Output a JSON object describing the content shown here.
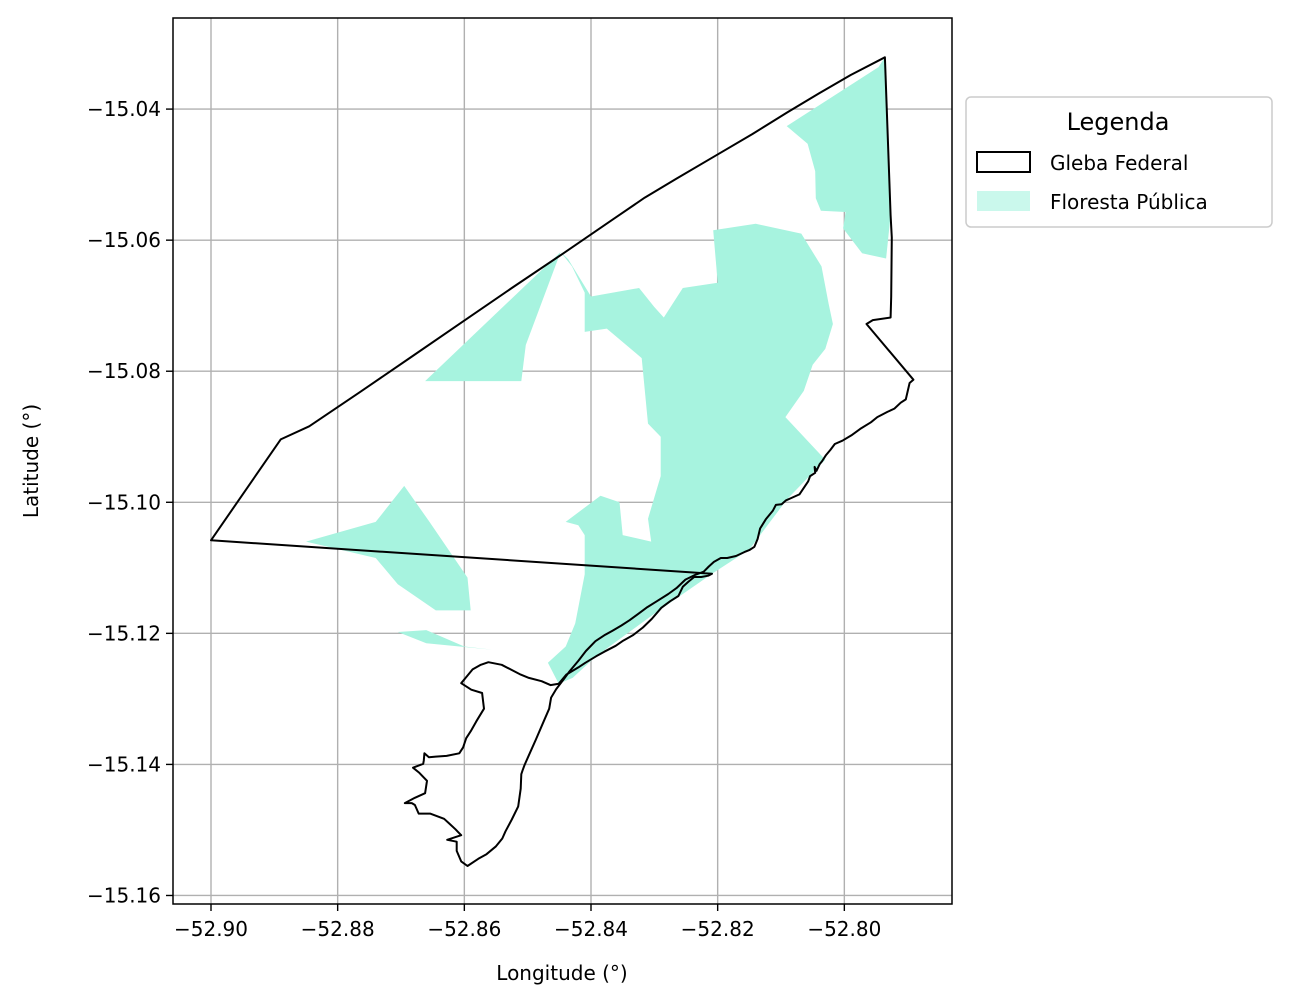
{
  "chart_data": {
    "type": "map",
    "xlabel": "Longitude (°)",
    "ylabel": "Latitude (°)",
    "xlim": [
      -52.906,
      -52.783
    ],
    "ylim": [
      -15.1613,
      -15.0261
    ],
    "x_ticks": [
      -52.9,
      -52.88,
      -52.86,
      -52.84,
      -52.82,
      -52.8
    ],
    "x_tick_labels": [
      "−52.90",
      "−52.88",
      "−52.86",
      "−52.84",
      "−52.82",
      "−52.80"
    ],
    "y_ticks": [
      -15.04,
      -15.06,
      -15.08,
      -15.1,
      -15.12,
      -15.14,
      -15.16
    ],
    "y_tick_labels": [
      "−15.04",
      "−15.06",
      "−15.08",
      "−15.10",
      "−15.12",
      "−15.14",
      "−15.16"
    ],
    "grid": true,
    "legend": {
      "title": "Legenda",
      "placement": "outside-upper-right",
      "entries": [
        {
          "label": "Gleba Federal",
          "style": "outline",
          "color": "#000000"
        },
        {
          "label": "Floresta Pública",
          "style": "fill",
          "color": "#a7f3df"
        }
      ]
    },
    "layers": [
      {
        "name": "Gleba Federal",
        "style": "outline",
        "color": "#000000",
        "polygons": [
          [
            [
              -52.9,
              -15.1058
            ],
            [
              -52.889,
              -15.0904
            ],
            [
              -52.8845,
              -15.0884
            ],
            [
              -52.8765,
              -15.0832
            ],
            [
              -52.8685,
              -15.0779
            ],
            [
              -52.8605,
              -15.0726
            ],
            [
              -52.8525,
              -15.0673
            ],
            [
              -52.8445,
              -15.0621
            ],
            [
              -52.8365,
              -15.0568
            ],
            [
              -52.8315,
              -15.0535
            ],
            [
              -52.8265,
              -15.0506
            ],
            [
              -52.8205,
              -15.0472
            ],
            [
              -52.8145,
              -15.0438
            ],
            [
              -52.809,
              -15.0405
            ],
            [
              -52.804,
              -15.0376
            ],
            [
              -52.799,
              -15.0348
            ],
            [
              -52.7936,
              -15.0321
            ],
            [
              -52.7927,
              -15.0562
            ],
            [
              -52.7925,
              -15.0596
            ],
            [
              -52.7926,
              -15.0686
            ],
            [
              -52.7927,
              -15.0718
            ],
            [
              -52.7955,
              -15.0722
            ],
            [
              -52.7965,
              -15.0728
            ],
            [
              -52.7891,
              -15.0813
            ],
            [
              -52.7897,
              -15.0818
            ],
            [
              -52.7903,
              -15.0843
            ],
            [
              -52.7911,
              -15.0848
            ],
            [
              -52.7921,
              -15.0857
            ],
            [
              -52.7932,
              -15.0862
            ],
            [
              -52.7948,
              -15.087
            ],
            [
              -52.7958,
              -15.0878
            ],
            [
              -52.7975,
              -15.0888
            ],
            [
              -52.7989,
              -15.0898
            ],
            [
              -52.8003,
              -15.0906
            ],
            [
              -52.8015,
              -15.0911
            ],
            [
              -52.8022,
              -15.092
            ],
            [
              -52.8029,
              -15.0928
            ],
            [
              -52.8035,
              -15.0937
            ],
            [
              -52.8039,
              -15.0942
            ],
            [
              -52.8044,
              -15.0952
            ],
            [
              -52.8047,
              -15.0946
            ],
            [
              -52.8046,
              -15.0955
            ],
            [
              -52.8054,
              -15.096
            ],
            [
              -52.8057,
              -15.0968
            ],
            [
              -52.8066,
              -15.0981
            ],
            [
              -52.8071,
              -15.0988
            ],
            [
              -52.8085,
              -15.0994
            ],
            [
              -52.8092,
              -15.0997
            ],
            [
              -52.8099,
              -15.1003
            ],
            [
              -52.8108,
              -15.1004
            ],
            [
              -52.8113,
              -15.1013
            ],
            [
              -52.8124,
              -15.1026
            ],
            [
              -52.8133,
              -15.104
            ],
            [
              -52.8137,
              -15.1056
            ],
            [
              -52.8142,
              -15.1068
            ],
            [
              -52.815,
              -15.1073
            ],
            [
              -52.8158,
              -15.1076
            ],
            [
              -52.8171,
              -15.1082
            ],
            [
              -52.8185,
              -15.1085
            ],
            [
              -52.8195,
              -15.1085
            ],
            [
              -52.8206,
              -15.1091
            ],
            [
              -52.8214,
              -15.1098
            ],
            [
              -52.8222,
              -15.1106
            ],
            [
              -52.8236,
              -15.1111
            ],
            [
              -52.8251,
              -15.1118
            ],
            [
              -52.8265,
              -15.1131
            ],
            [
              -52.8278,
              -15.114
            ],
            [
              -52.8296,
              -15.1151
            ],
            [
              -52.8311,
              -15.116
            ],
            [
              -52.8325,
              -15.117
            ],
            [
              -52.8339,
              -15.118
            ],
            [
              -52.8352,
              -15.1188
            ],
            [
              -52.8366,
              -15.1196
            ],
            [
              -52.8379,
              -15.1203
            ],
            [
              -52.8393,
              -15.1212
            ],
            [
              -52.8408,
              -15.1227
            ],
            [
              -52.842,
              -15.1242
            ],
            [
              -52.8434,
              -15.1258
            ],
            [
              -52.8443,
              -15.127
            ],
            [
              -52.8455,
              -15.1285
            ],
            [
              -52.8463,
              -15.1298
            ],
            [
              -52.8466,
              -15.1315
            ],
            [
              -52.8475,
              -15.1335
            ],
            [
              -52.8487,
              -15.1362
            ],
            [
              -52.8498,
              -15.1386
            ],
            [
              -52.8505,
              -15.1401
            ],
            [
              -52.8508,
              -15.1409
            ],
            [
              -52.851,
              -15.1415
            ],
            [
              -52.8511,
              -15.1437
            ],
            [
              -52.8515,
              -15.1464
            ],
            [
              -52.8525,
              -15.1484
            ],
            [
              -52.8535,
              -15.1502
            ],
            [
              -52.854,
              -15.1513
            ],
            [
              -52.855,
              -15.1525
            ],
            [
              -52.8565,
              -15.1537
            ],
            [
              -52.8578,
              -15.1544
            ],
            [
              -52.8595,
              -15.1555
            ],
            [
              -52.8605,
              -15.1548
            ],
            [
              -52.8612,
              -15.1532
            ],
            [
              -52.8612,
              -15.1518
            ],
            [
              -52.8627,
              -15.1515
            ],
            [
              -52.8605,
              -15.1508
            ],
            [
              -52.861,
              -15.1503
            ],
            [
              -52.8614,
              -15.1499
            ],
            [
              -52.8624,
              -15.149
            ],
            [
              -52.8632,
              -15.1483
            ],
            [
              -52.8654,
              -15.1475
            ],
            [
              -52.8672,
              -15.1475
            ],
            [
              -52.8678,
              -15.1462
            ],
            [
              -52.8683,
              -15.1459
            ],
            [
              -52.869,
              -15.1459
            ],
            [
              -52.8694,
              -15.1459
            ],
            [
              -52.8678,
              -15.1451
            ],
            [
              -52.8662,
              -15.1444
            ],
            [
              -52.8659,
              -15.1425
            ],
            [
              -52.8671,
              -15.1413
            ],
            [
              -52.8681,
              -15.1405
            ],
            [
              -52.8665,
              -15.1399
            ],
            [
              -52.8664,
              -15.1394
            ],
            [
              -52.8663,
              -15.1383
            ],
            [
              -52.8656,
              -15.1389
            ],
            [
              -52.8645,
              -15.1388
            ],
            [
              -52.8628,
              -15.1387
            ],
            [
              -52.8608,
              -15.1383
            ],
            [
              -52.8602,
              -15.1374
            ],
            [
              -52.8597,
              -15.136
            ],
            [
              -52.8589,
              -15.1348
            ],
            [
              -52.8581,
              -15.1334
            ],
            [
              -52.8569,
              -15.1315
            ],
            [
              -52.8572,
              -15.1291
            ],
            [
              -52.8589,
              -15.1286
            ],
            [
              -52.8605,
              -15.1276
            ],
            [
              -52.8598,
              -15.1268
            ],
            [
              -52.8587,
              -15.1255
            ],
            [
              -52.8574,
              -15.1248
            ],
            [
              -52.8562,
              -15.1244
            ],
            [
              -52.8541,
              -15.1248
            ],
            [
              -52.8527,
              -15.1255
            ],
            [
              -52.8511,
              -15.1263
            ],
            [
              -52.8498,
              -15.1268
            ],
            [
              -52.8478,
              -15.1273
            ],
            [
              -52.8464,
              -15.1279
            ],
            [
              -52.8451,
              -15.1277
            ],
            [
              -52.8439,
              -15.1263
            ],
            [
              -52.842,
              -15.1252
            ],
            [
              -52.8409,
              -15.1245
            ],
            [
              -52.8392,
              -15.1235
            ],
            [
              -52.8379,
              -15.1228
            ],
            [
              -52.8361,
              -15.1219
            ],
            [
              -52.8349,
              -15.1211
            ],
            [
              -52.8334,
              -15.1203
            ],
            [
              -52.8318,
              -15.1191
            ],
            [
              -52.8304,
              -15.1178
            ],
            [
              -52.8289,
              -15.1161
            ],
            [
              -52.8275,
              -15.1151
            ],
            [
              -52.8262,
              -15.1143
            ],
            [
              -52.8255,
              -15.1129
            ],
            [
              -52.8246,
              -15.1121
            ],
            [
              -52.8237,
              -15.1114
            ],
            [
              -52.8226,
              -15.1114
            ],
            [
              -52.8215,
              -15.1112
            ],
            [
              -52.8209,
              -15.1109
            ],
            [
              -52.9,
              -15.1058
            ]
          ]
        ]
      },
      {
        "name": "Floresta Pública",
        "style": "fill",
        "color": "#a7f3df",
        "polygons": [
          [
            [
              -52.8091,
              -15.0426
            ],
            [
              -52.7946,
              -15.0336
            ],
            [
              -52.7936,
              -15.0321
            ],
            [
              -52.7927,
              -15.0562
            ],
            [
              -52.7934,
              -15.0628
            ],
            [
              -52.7972,
              -15.062
            ],
            [
              -52.8002,
              -15.0582
            ],
            [
              -52.7998,
              -15.0557
            ],
            [
              -52.8037,
              -15.0555
            ],
            [
              -52.8045,
              -15.0536
            ],
            [
              -52.8046,
              -15.0495
            ],
            [
              -52.8058,
              -15.0453
            ],
            [
              -52.8091,
              -15.0426
            ]
          ],
          [
            [
              -52.8662,
              -15.0815
            ],
            [
              -52.8448,
              -15.0618
            ],
            [
              -52.8436,
              -15.0629
            ],
            [
              -52.84,
              -15.0686
            ],
            [
              -52.8324,
              -15.0673
            ],
            [
              -52.83,
              -15.0702
            ],
            [
              -52.8285,
              -15.0718
            ],
            [
              -52.8255,
              -15.0673
            ],
            [
              -52.82,
              -15.0665
            ],
            [
              -52.8207,
              -15.0585
            ],
            [
              -52.814,
              -15.0575
            ],
            [
              -52.8068,
              -15.059
            ],
            [
              -52.8036,
              -15.064
            ],
            [
              -52.8025,
              -15.0696
            ],
            [
              -52.8018,
              -15.0728
            ],
            [
              -52.803,
              -15.0766
            ],
            [
              -52.805,
              -15.079
            ],
            [
              -52.8064,
              -15.083
            ],
            [
              -52.8093,
              -15.087
            ],
            [
              -52.803,
              -15.0935
            ],
            [
              -52.804,
              -15.0945
            ],
            [
              -52.809,
              -15.0995
            ],
            [
              -52.815,
              -15.1072
            ],
            [
              -52.8209,
              -15.1109
            ],
            [
              -52.83,
              -15.117
            ],
            [
              -52.8392,
              -15.1235
            ],
            [
              -52.8429,
              -15.1268
            ],
            [
              -52.8451,
              -15.1277
            ],
            [
              -52.8468,
              -15.1245
            ],
            [
              -52.844,
              -15.122
            ],
            [
              -52.8425,
              -15.1185
            ],
            [
              -52.841,
              -15.111
            ],
            [
              -52.841,
              -15.105
            ],
            [
              -52.842,
              -15.1035
            ],
            [
              -52.844,
              -15.103
            ],
            [
              -52.8385,
              -15.099
            ],
            [
              -52.8355,
              -15.1
            ],
            [
              -52.835,
              -15.105
            ],
            [
              -52.8305,
              -15.106
            ],
            [
              -52.831,
              -15.1025
            ],
            [
              -52.829,
              -15.096
            ],
            [
              -52.829,
              -15.09
            ],
            [
              -52.831,
              -15.088
            ],
            [
              -52.832,
              -15.078
            ],
            [
              -52.8375,
              -15.0735
            ],
            [
              -52.841,
              -15.074
            ],
            [
              -52.841,
              -15.068
            ],
            [
              -52.843,
              -15.064
            ],
            [
              -52.8448,
              -15.0618
            ],
            [
              -52.8503,
              -15.076
            ],
            [
              -52.851,
              -15.0815
            ],
            [
              -52.8662,
              -15.0815
            ]
          ],
          [
            [
              -52.885,
              -15.106
            ],
            [
              -52.874,
              -15.103
            ],
            [
              -52.8695,
              -15.0975
            ],
            [
              -52.8655,
              -15.103
            ],
            [
              -52.8595,
              -15.1115
            ],
            [
              -52.859,
              -15.1165
            ],
            [
              -52.8645,
              -15.1165
            ],
            [
              -52.8705,
              -15.1125
            ],
            [
              -52.874,
              -15.1085
            ],
            [
              -52.885,
              -15.106
            ]
          ],
          [
            [
              -52.8705,
              -15.1198
            ],
            [
              -52.866,
              -15.1195
            ],
            [
              -52.86,
              -15.122
            ],
            [
              -52.8555,
              -15.1225
            ],
            [
              -52.866,
              -15.1215
            ],
            [
              -52.8705,
              -15.1198
            ]
          ]
        ]
      }
    ]
  }
}
